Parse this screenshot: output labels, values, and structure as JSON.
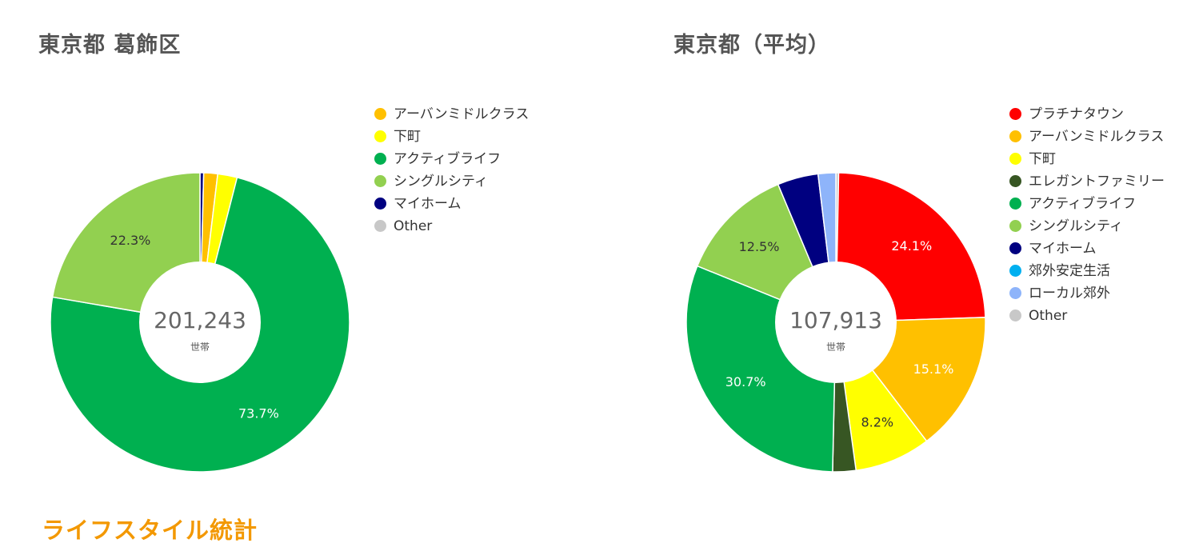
{
  "footer_title": "ライフスタイル統計",
  "center_unit": "世帯",
  "charts": [
    {
      "title": "東京都 葛飾区",
      "center_value": "201,243",
      "legend": [
        {
          "label": "アーバンミドルクラス",
          "color": "#ffc000"
        },
        {
          "label": "下町",
          "color": "#ffff00"
        },
        {
          "label": "アクティブライフ",
          "color": "#00b050"
        },
        {
          "label": "シングルシティ",
          "color": "#92d050"
        },
        {
          "label": "マイホーム",
          "color": "#000080"
        },
        {
          "label": "Other",
          "color": "#c8c8c8"
        }
      ]
    },
    {
      "title": "東京都（平均）",
      "center_value": "107,913",
      "legend": [
        {
          "label": "プラチナタウン",
          "color": "#ff0000"
        },
        {
          "label": "アーバンミドルクラス",
          "color": "#ffc000"
        },
        {
          "label": "下町",
          "color": "#ffff00"
        },
        {
          "label": "エレガントファミリー",
          "color": "#375623"
        },
        {
          "label": "アクティブライフ",
          "color": "#00b050"
        },
        {
          "label": "シングルシティ",
          "color": "#92d050"
        },
        {
          "label": "マイホーム",
          "color": "#000080"
        },
        {
          "label": "郊外安定生活",
          "color": "#00b0f0"
        },
        {
          "label": "ローカル郊外",
          "color": "#8eb4fa"
        },
        {
          "label": "Other",
          "color": "#c8c8c8"
        }
      ]
    }
  ],
  "chart_data": [
    {
      "type": "pie",
      "title": "東京都 葛飾区",
      "center_value": "201,243",
      "center_unit": "世帯",
      "legend_position": "right",
      "slices": [
        {
          "name": "マイホーム",
          "value": 0.4,
          "label": "",
          "color": "#000080"
        },
        {
          "name": "アーバンミドルクラス",
          "value": 1.5,
          "label": "",
          "color": "#ffc000"
        },
        {
          "name": "下町",
          "value": 2.1,
          "label": "",
          "color": "#ffff00"
        },
        {
          "name": "アクティブライフ",
          "value": 73.7,
          "label": "73.7%",
          "color": "#00b050"
        },
        {
          "name": "シングルシティ",
          "value": 22.3,
          "label": "22.3%",
          "color": "#92d050"
        }
      ]
    },
    {
      "type": "pie",
      "title": "東京都（平均）",
      "center_value": "107,913",
      "center_unit": "世帯",
      "legend_position": "right",
      "slices": [
        {
          "name": "Other",
          "value": 0.3,
          "label": "",
          "color": "#c8c8c8"
        },
        {
          "name": "プラチナタウン",
          "value": 24.1,
          "label": "24.1%",
          "color": "#ff0000"
        },
        {
          "name": "アーバンミドルクラス",
          "value": 15.1,
          "label": "15.1%",
          "color": "#ffc000"
        },
        {
          "name": "下町",
          "value": 8.2,
          "label": "8.2%",
          "color": "#ffff00"
        },
        {
          "name": "エレガントファミリー",
          "value": 2.5,
          "label": "",
          "color": "#375623"
        },
        {
          "name": "アクティブライフ",
          "value": 30.7,
          "label": "30.7%",
          "color": "#00b050"
        },
        {
          "name": "シングルシティ",
          "value": 12.5,
          "label": "12.5%",
          "color": "#92d050"
        },
        {
          "name": "マイホーム",
          "value": 4.4,
          "label": "",
          "color": "#000080"
        },
        {
          "name": "ローカル郊外",
          "value": 1.9,
          "label": "",
          "color": "#8eb4fa"
        }
      ]
    }
  ]
}
